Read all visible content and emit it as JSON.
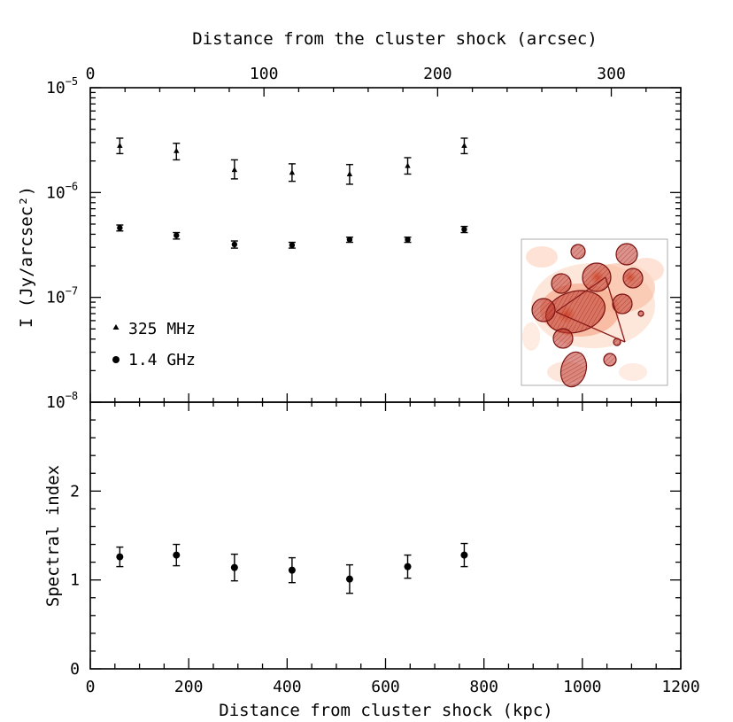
{
  "chart_data": [
    {
      "type": "scatter",
      "panel": "top",
      "xlabel_top": "Distance from the cluster shock (arcsec)",
      "ylabel": "I (Jy/arcsec²)",
      "yscale": "log",
      "ylim": [
        1e-08,
        1e-05
      ],
      "xlim": [
        0,
        1200
      ],
      "xlim_top": [
        0,
        340
      ],
      "x_top_ticks": [
        0,
        100,
        200,
        300
      ],
      "y_tick_labels": [
        {
          "value": 1e-08,
          "base": "10",
          "exp": "−8"
        },
        {
          "value": 1e-07,
          "base": "10",
          "exp": "−7"
        },
        {
          "value": 1e-06,
          "base": "10",
          "exp": "−6"
        },
        {
          "value": 1e-05,
          "base": "10",
          "exp": "−5"
        }
      ],
      "legend_position": "bottom-left",
      "series": [
        {
          "name": "325 MHz",
          "marker": "triangle",
          "points": [
            {
              "x": 60,
              "y": 2.8e-06,
              "ylo": 2.35e-06,
              "yhi": 3.3e-06
            },
            {
              "x": 175,
              "y": 2.5e-06,
              "ylo": 2.05e-06,
              "yhi": 2.95e-06
            },
            {
              "x": 293,
              "y": 1.65e-06,
              "ylo": 1.35e-06,
              "yhi": 2.05e-06
            },
            {
              "x": 410,
              "y": 1.55e-06,
              "ylo": 1.28e-06,
              "yhi": 1.88e-06
            },
            {
              "x": 527,
              "y": 1.5e-06,
              "ylo": 1.2e-06,
              "yhi": 1.85e-06
            },
            {
              "x": 645,
              "y": 1.8e-06,
              "ylo": 1.5e-06,
              "yhi": 2.15e-06
            },
            {
              "x": 760,
              "y": 2.8e-06,
              "ylo": 2.35e-06,
              "yhi": 3.3e-06
            }
          ]
        },
        {
          "name": "1.4 GHz",
          "marker": "circle",
          "points": [
            {
              "x": 60,
              "y": 4.6e-07,
              "ylo": 4.3e-07,
              "yhi": 4.9e-07
            },
            {
              "x": 175,
              "y": 3.9e-07,
              "ylo": 3.6e-07,
              "yhi": 4.15e-07
            },
            {
              "x": 293,
              "y": 3.2e-07,
              "ylo": 2.95e-07,
              "yhi": 3.45e-07
            },
            {
              "x": 410,
              "y": 3.15e-07,
              "ylo": 2.95e-07,
              "yhi": 3.35e-07
            },
            {
              "x": 527,
              "y": 3.55e-07,
              "ylo": 3.35e-07,
              "yhi": 3.75e-07
            },
            {
              "x": 645,
              "y": 3.55e-07,
              "ylo": 3.35e-07,
              "yhi": 3.75e-07
            },
            {
              "x": 760,
              "y": 4.45e-07,
              "ylo": 4.15e-07,
              "yhi": 4.75e-07
            }
          ]
        }
      ]
    },
    {
      "type": "scatter",
      "panel": "bottom",
      "xlabel": "Distance from cluster shock (kpc)",
      "ylabel": "Spectral index",
      "xlim": [
        0,
        1200
      ],
      "ylim": [
        0,
        3
      ],
      "x_ticks": [
        0,
        200,
        400,
        600,
        800,
        1000,
        1200
      ],
      "y_ticks": [
        0,
        1,
        2
      ],
      "series": [
        {
          "marker": "circle",
          "points": [
            {
              "x": 60,
              "y": 1.26,
              "ylo": 1.15,
              "yhi": 1.37
            },
            {
              "x": 175,
              "y": 1.28,
              "ylo": 1.16,
              "yhi": 1.4
            },
            {
              "x": 293,
              "y": 1.14,
              "ylo": 0.99,
              "yhi": 1.29
            },
            {
              "x": 410,
              "y": 1.11,
              "ylo": 0.97,
              "yhi": 1.25
            },
            {
              "x": 527,
              "y": 1.01,
              "ylo": 0.85,
              "yhi": 1.17
            },
            {
              "x": 645,
              "y": 1.15,
              "ylo": 1.02,
              "yhi": 1.28
            },
            {
              "x": 760,
              "y": 1.28,
              "ylo": 1.15,
              "yhi": 1.41
            }
          ]
        }
      ]
    }
  ],
  "inset": {
    "description_name": "radio-map-inset",
    "colors": {
      "emission_light": "#fde3d5",
      "emission_mid": "#f5a27e",
      "emission_dark": "#8b1a1a",
      "region_fill": "#c0392b",
      "region_edge": "#7a1010"
    }
  }
}
